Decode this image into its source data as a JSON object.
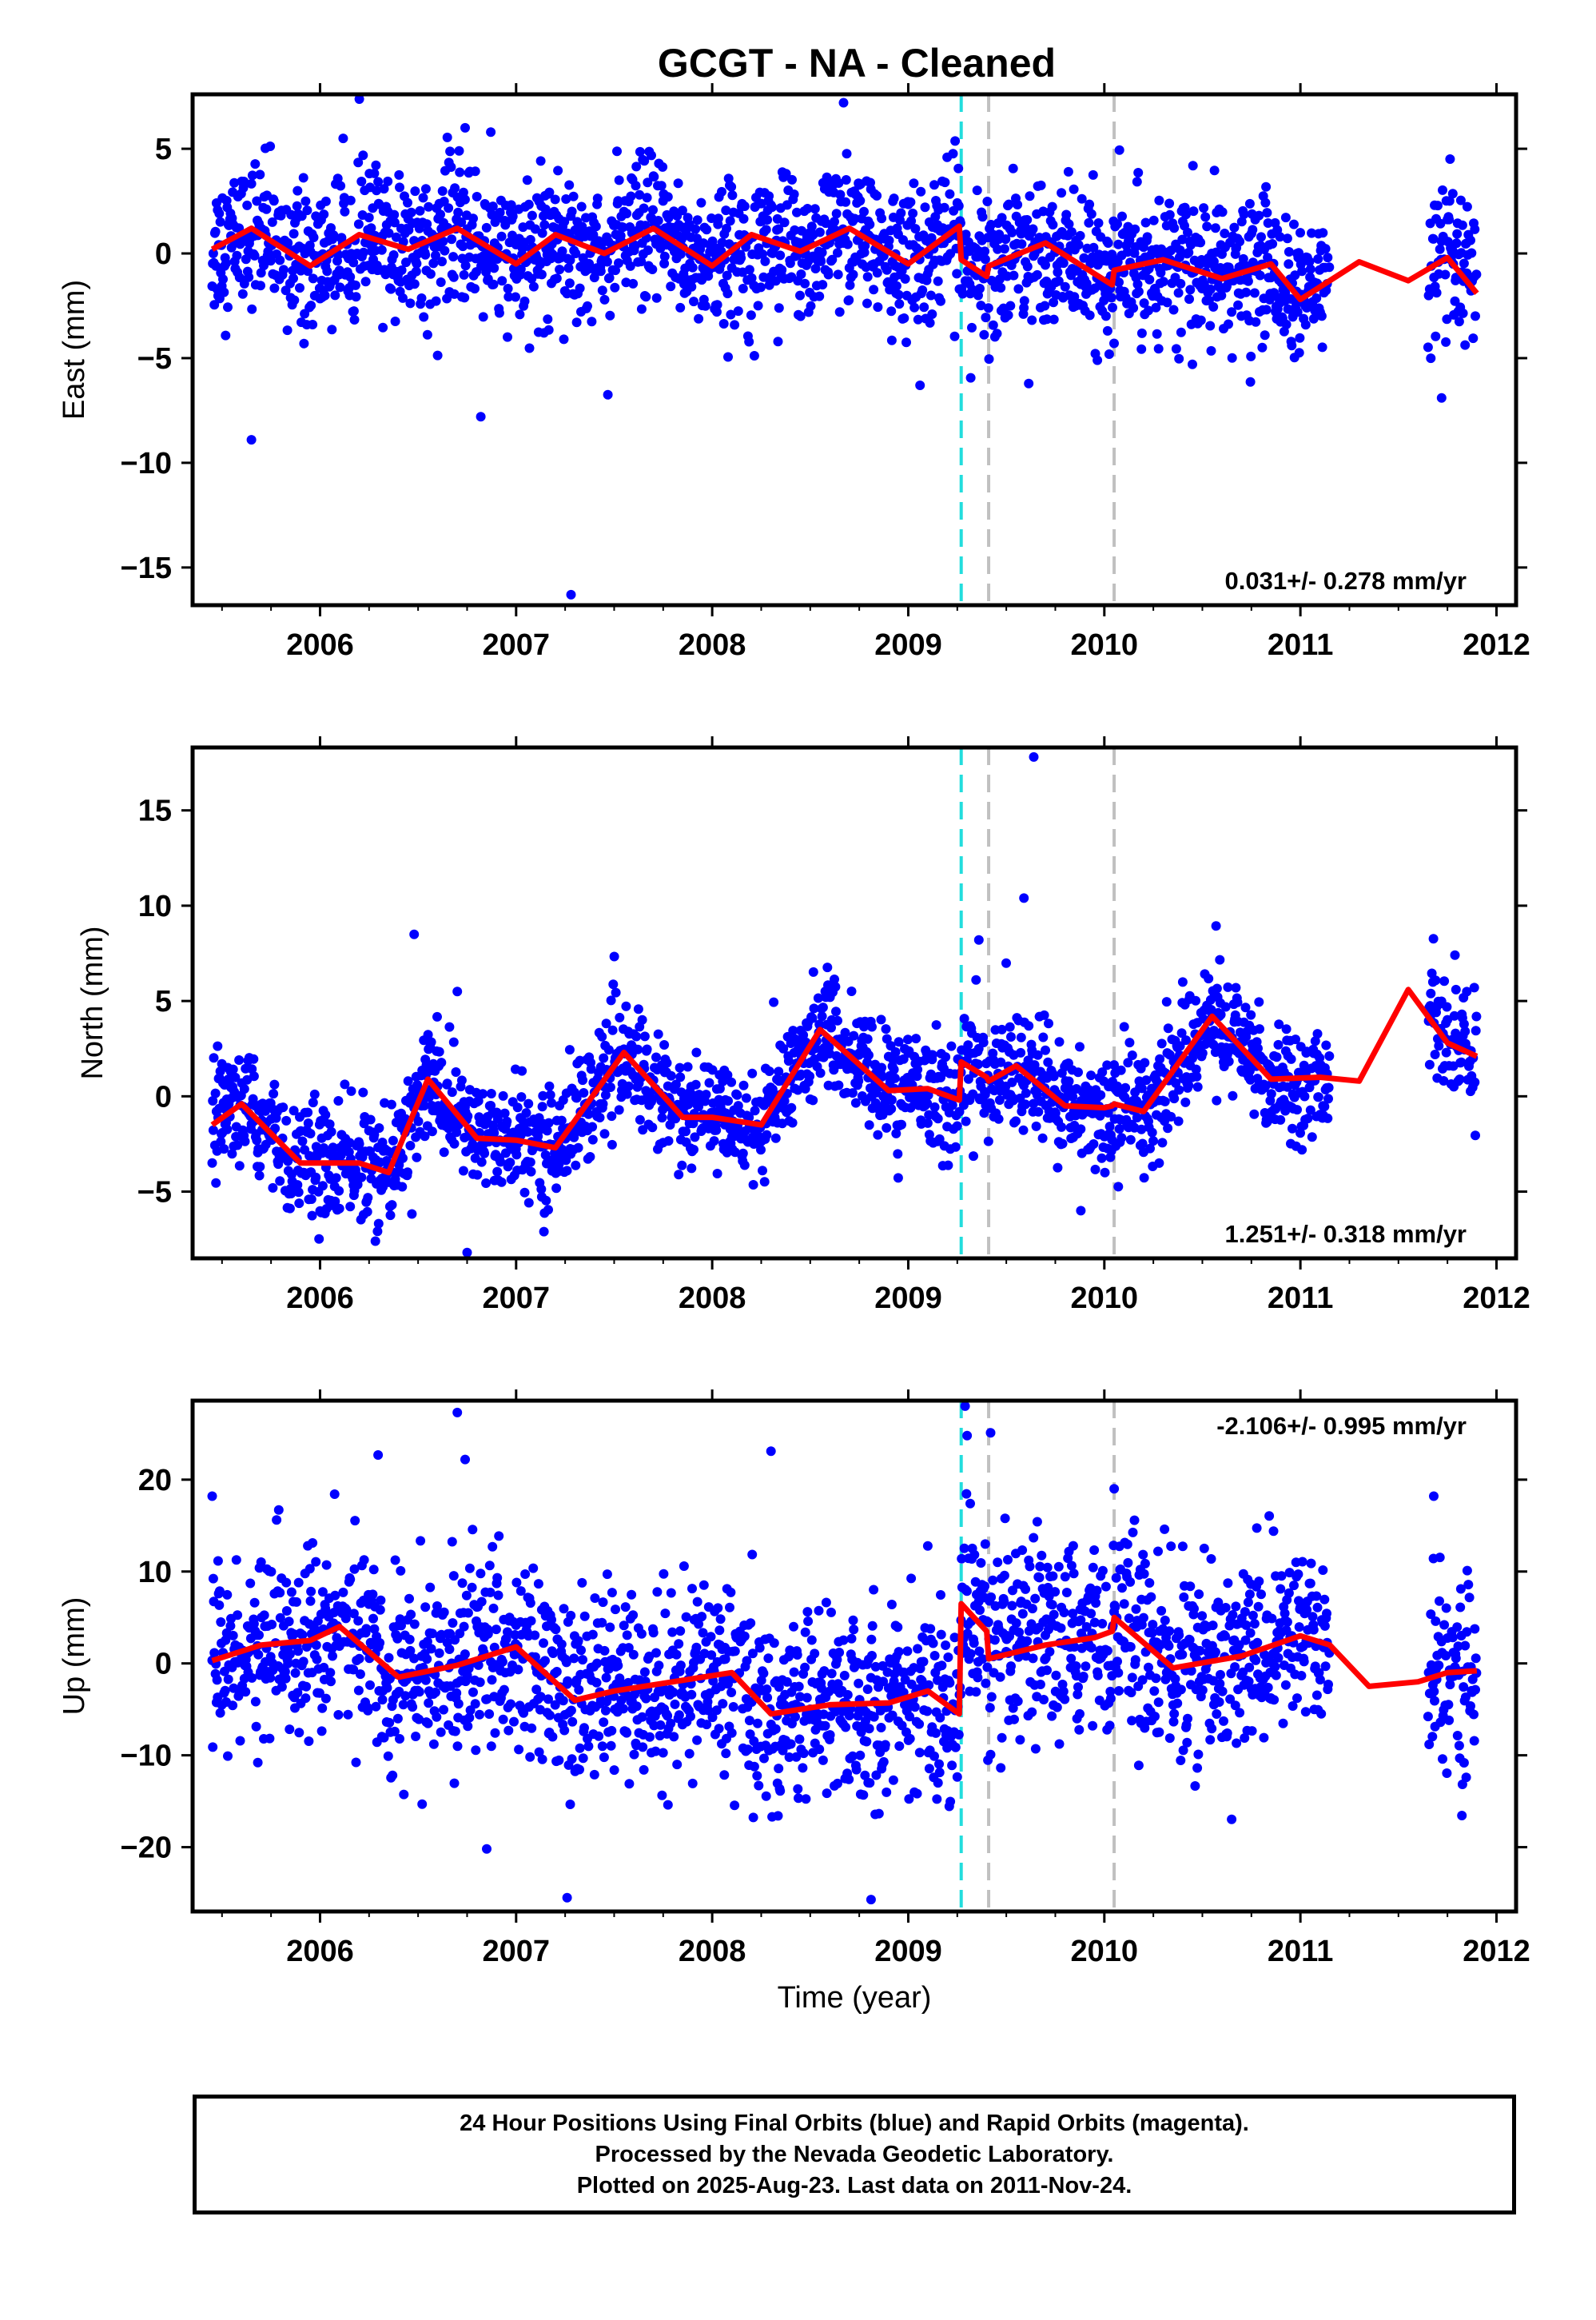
{
  "title": "GCGT  - NA - Cleaned",
  "colors": {
    "points": "#0000ff",
    "model": "#ff0000",
    "eq_line": "#22dddd",
    "ant_line": "#c0c0c0",
    "frame": "#000000"
  },
  "footer": {
    "line1": "24 Hour Positions Using Final Orbits (blue) and Rapid Orbits (magenta).",
    "line2": "Processed by the Nevada Geodetic Laboratory.",
    "line3": "Plotted on 2025-Aug-23. Last data on 2011-Nov-24."
  },
  "chart_data": [
    {
      "type": "scatter",
      "ylabel": "East (mm)",
      "xlabel": "",
      "xlim": [
        2005.35,
        2012.1
      ],
      "ylim": [
        -16.8,
        7.6
      ],
      "xticks": [
        2006,
        2007,
        2008,
        2009,
        2010,
        2011,
        2012
      ],
      "xtick_labels": [
        "2006",
        "2007",
        "2008",
        "2009",
        "2010",
        "2011",
        "2012"
      ],
      "yticks": [
        5,
        0,
        -5,
        -10,
        -15
      ],
      "ytick_labels": [
        "5",
        "0",
        "−5",
        "−10",
        "−15"
      ],
      "rate_label": "0.031+/- 0.278 mm/yr",
      "rate_position": "bottom-right",
      "vlines": [
        {
          "x": 2009.27,
          "kind": "earthquake"
        },
        {
          "x": 2009.41,
          "kind": "antenna"
        },
        {
          "x": 2010.05,
          "kind": "antenna"
        }
      ],
      "data_span": [
        2005.45,
        2011.9
      ],
      "gaps": [
        [
          2011.15,
          2011.65
        ]
      ],
      "points_scatter_sigma": 1.7,
      "outliers": [
        [
          2005.65,
          -8.9
        ],
        [
          2006.82,
          -7.8
        ],
        [
          2007.28,
          -16.3
        ],
        [
          2008.67,
          7.2
        ],
        [
          2009.06,
          -6.3
        ],
        [
          2011.72,
          -6.9
        ],
        [
          2006.74,
          6.0
        ]
      ],
      "model": {
        "x": [
          2005.45,
          2005.65,
          2005.95,
          2006.2,
          2006.45,
          2006.7,
          2007.0,
          2007.2,
          2007.45,
          2007.7,
          2008.0,
          2008.2,
          2008.45,
          2008.7,
          2009.0,
          2009.26,
          2009.27,
          2009.4,
          2009.41,
          2009.7,
          2010.04,
          2010.05,
          2010.3,
          2010.6,
          2010.85,
          2011.0,
          2011.3,
          2011.55,
          2011.75,
          2011.9
        ],
        "y": [
          0.2,
          1.2,
          -0.6,
          0.9,
          0.2,
          1.2,
          -0.5,
          0.9,
          0.0,
          1.2,
          -0.6,
          0.9,
          0.1,
          1.2,
          -0.5,
          1.3,
          -0.3,
          -1.1,
          -0.6,
          0.5,
          -1.5,
          -0.8,
          -0.3,
          -1.2,
          -0.5,
          -2.2,
          -0.4,
          -1.3,
          -0.2,
          -1.9
        ]
      }
    },
    {
      "type": "scatter",
      "ylabel": "North (mm)",
      "xlabel": "",
      "xlim": [
        2005.35,
        2012.1
      ],
      "ylim": [
        -8.5,
        18.3
      ],
      "xticks": [
        2006,
        2007,
        2008,
        2009,
        2010,
        2011,
        2012
      ],
      "xtick_labels": [
        "2006",
        "2007",
        "2008",
        "2009",
        "2010",
        "2011",
        "2012"
      ],
      "yticks": [
        15,
        10,
        5,
        0,
        -5
      ],
      "ytick_labels": [
        "15",
        "10",
        "5",
        "0",
        "−5"
      ],
      "rate_label": "1.251+/- 0.318 mm/yr",
      "rate_position": "bottom-right",
      "vlines": [
        {
          "x": 2009.27,
          "kind": "earthquake"
        },
        {
          "x": 2009.41,
          "kind": "antenna"
        },
        {
          "x": 2010.05,
          "kind": "antenna"
        }
      ],
      "data_span": [
        2005.45,
        2011.9
      ],
      "gaps": [
        [
          2011.15,
          2011.65
        ]
      ],
      "points_scatter_sigma": 1.5,
      "outliers": [
        [
          2006.48,
          8.5
        ],
        [
          2006.7,
          5.5
        ],
        [
          2009.64,
          17.8
        ],
        [
          2009.59,
          10.4
        ],
        [
          2009.36,
          8.2
        ],
        [
          2006.75,
          -8.2
        ],
        [
          2009.88,
          -6.0
        ]
      ],
      "model": {
        "x": [
          2005.45,
          2005.6,
          2005.9,
          2006.2,
          2006.35,
          2006.55,
          2006.8,
          2007.0,
          2007.2,
          2007.55,
          2007.85,
          2008.0,
          2008.25,
          2008.55,
          2008.9,
          2009.1,
          2009.26,
          2009.27,
          2009.4,
          2009.41,
          2009.55,
          2009.8,
          2010.0,
          2010.04,
          2010.05,
          2010.2,
          2010.55,
          2010.85,
          2011.1,
          2011.3,
          2011.55,
          2011.75,
          2011.9
        ],
        "y": [
          -1.5,
          -0.4,
          -3.5,
          -3.5,
          -4.0,
          0.9,
          -2.2,
          -2.3,
          -2.7,
          2.3,
          -1.1,
          -1.1,
          -1.5,
          3.5,
          0.3,
          0.4,
          -0.2,
          1.8,
          1.0,
          0.8,
          1.6,
          -0.5,
          -0.6,
          -0.5,
          -0.4,
          -0.8,
          4.2,
          0.9,
          1.0,
          0.8,
          5.6,
          2.8,
          2.1
        ]
      }
    },
    {
      "type": "scatter",
      "ylabel": "Up (mm)",
      "xlabel": "Time (year)",
      "xlim": [
        2005.35,
        2012.1
      ],
      "ylim": [
        -27,
        28.6
      ],
      "xticks": [
        2006,
        2007,
        2008,
        2009,
        2010,
        2011,
        2012
      ],
      "xtick_labels": [
        "2006",
        "2007",
        "2008",
        "2009",
        "2010",
        "2011",
        "2012"
      ],
      "yticks": [
        20,
        10,
        0,
        -10,
        -20
      ],
      "ytick_labels": [
        "20",
        "10",
        "0",
        "−10",
        "−20"
      ],
      "rate_label": "-2.106+/- 0.995 mm/yr",
      "rate_position": "top-right",
      "vlines": [
        {
          "x": 2009.27,
          "kind": "earthquake"
        },
        {
          "x": 2009.41,
          "kind": "antenna"
        },
        {
          "x": 2010.05,
          "kind": "antenna"
        }
      ],
      "data_span": [
        2005.45,
        2011.9
      ],
      "gaps": [
        [
          2011.15,
          2011.65
        ]
      ],
      "points_scatter_sigma": 5.2,
      "outliers": [
        [
          2006.7,
          27.3
        ],
        [
          2006.74,
          22.2
        ],
        [
          2008.3,
          23.1
        ],
        [
          2009.42,
          25.1
        ],
        [
          2009.29,
          28.0
        ],
        [
          2009.3,
          24.8
        ],
        [
          2007.26,
          -25.5
        ],
        [
          2008.81,
          -25.7
        ],
        [
          2005.45,
          18.2
        ],
        [
          2011.68,
          18.2
        ],
        [
          2010.05,
          19.0
        ],
        [
          2006.85,
          -20.2
        ]
      ],
      "model": {
        "x": [
          2005.45,
          2005.7,
          2005.95,
          2006.1,
          2006.4,
          2006.7,
          2007.0,
          2007.3,
          2007.5,
          2007.8,
          2008.1,
          2008.3,
          2008.6,
          2008.9,
          2009.1,
          2009.26,
          2009.27,
          2009.4,
          2009.41,
          2009.7,
          2009.95,
          2010.04,
          2010.05,
          2010.35,
          2010.7,
          2011.0,
          2011.15,
          2011.35,
          2011.6,
          2011.75,
          2011.9
        ],
        "y": [
          0.3,
          2.0,
          2.5,
          4.0,
          -1.5,
          -0.2,
          1.8,
          -4.0,
          -3.0,
          -2.0,
          -1.0,
          -5.5,
          -4.5,
          -4.3,
          -3.0,
          -5.5,
          6.5,
          3.5,
          0.5,
          2.0,
          2.8,
          3.5,
          5.0,
          -0.5,
          0.8,
          3.0,
          2.0,
          -2.5,
          -2.0,
          -1.0,
          -0.8
        ]
      }
    }
  ]
}
